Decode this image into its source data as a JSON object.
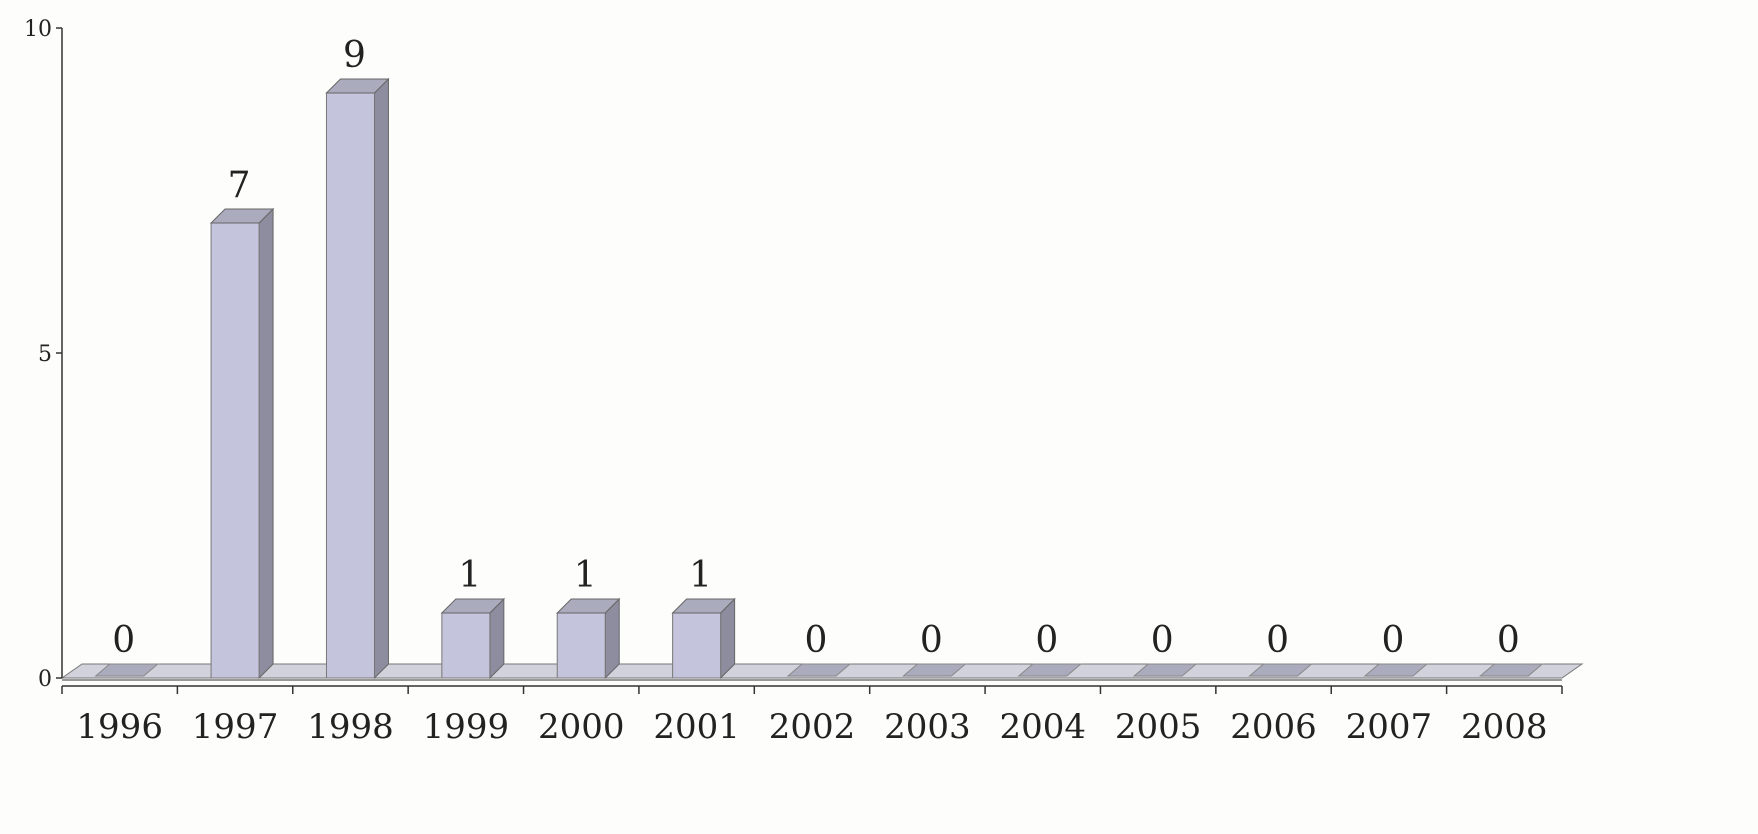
{
  "chart_data": {
    "type": "bar",
    "title": "",
    "xlabel": "",
    "ylabel": "",
    "categories": [
      "1996",
      "1997",
      "1998",
      "1999",
      "2000",
      "2001",
      "2002",
      "2003",
      "2004",
      "2005",
      "2006",
      "2007",
      "2008"
    ],
    "values": [
      0,
      7,
      9,
      1,
      1,
      1,
      0,
      0,
      0,
      0,
      0,
      0,
      0
    ],
    "data_labels": [
      "0",
      "7",
      "9",
      "1",
      "1",
      "1",
      "0",
      "0",
      "0",
      "0",
      "0",
      "0",
      "0"
    ],
    "ylim": [
      0,
      10
    ],
    "yticks": [
      "0",
      "5",
      "10"
    ],
    "grid": false,
    "legend": "none",
    "style": "3d",
    "colors": {
      "bar_front": "#c4c4dc",
      "bar_side": "#8d8d9f",
      "bar_top": "#ababbe",
      "floor": "#d2d2dc"
    }
  }
}
